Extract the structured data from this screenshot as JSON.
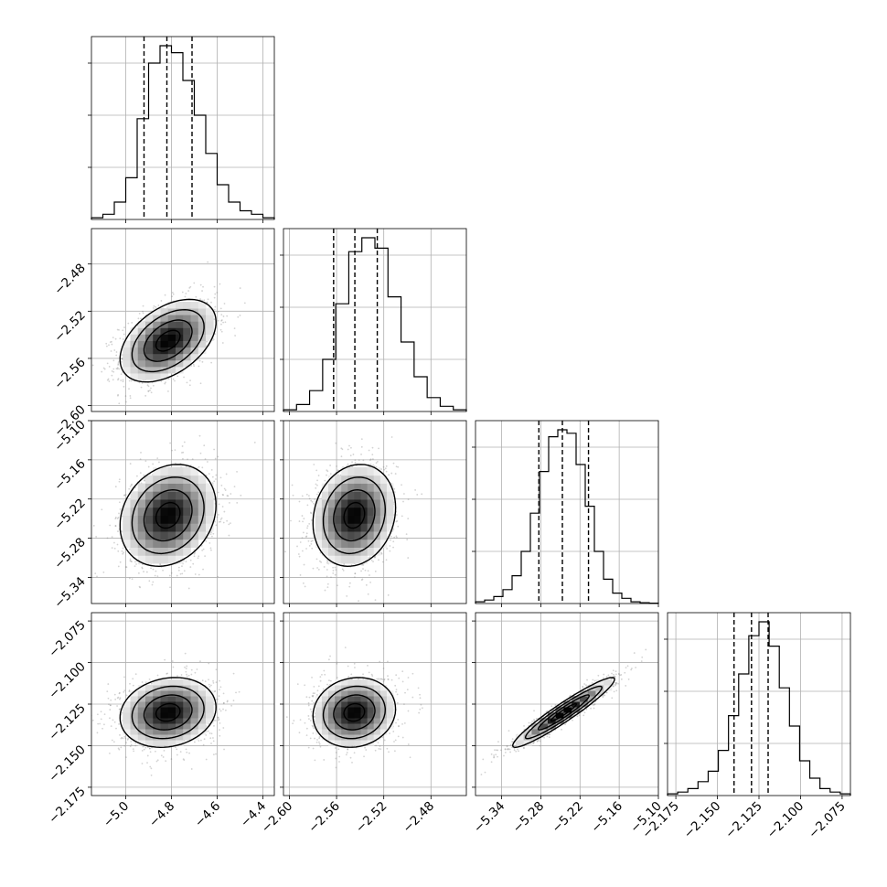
{
  "chart_data": {
    "type": "corner",
    "grid": true,
    "hist_color": "#000000",
    "scatter_color": "#808080",
    "contour_color": "#000000",
    "parameters": [
      {
        "range": [
          -5.15,
          -4.35
        ],
        "mean": -4.815,
        "std": 0.105,
        "quantiles": [
          -4.92,
          -4.82,
          -4.71
        ],
        "ticks": [
          -5.0,
          -4.8,
          -4.6,
          -4.4
        ],
        "tick_labels": [
          "−5.0",
          "−4.8",
          "−4.6",
          "−4.4"
        ]
      },
      {
        "range": [
          -2.605,
          -2.45
        ],
        "mean": -2.545,
        "std": 0.0175,
        "quantiles": [
          -2.5625,
          -2.5445,
          -2.5255
        ],
        "ticks": [
          -2.6,
          -2.56,
          -2.52,
          -2.48
        ],
        "tick_labels": [
          "−2.60",
          "−2.56",
          "−2.52",
          "−2.48"
        ]
      },
      {
        "range": [
          -5.38,
          -5.1
        ],
        "mean": -5.245,
        "std": 0.039,
        "quantiles": [
          -5.283,
          -5.247,
          -5.207
        ],
        "ticks": [
          -5.34,
          -5.28,
          -5.22,
          -5.16,
          -5.1
        ],
        "tick_labels": [
          "−5.34",
          "−5.28",
          "−5.22",
          "−5.16",
          "−5.10"
        ]
      },
      {
        "range": [
          -2.18,
          -2.07
        ],
        "mean": -2.13,
        "std": 0.0105,
        "quantiles": [
          -2.14,
          -2.1295,
          -2.1195
        ],
        "ticks": [
          -2.175,
          -2.15,
          -2.125,
          -2.1,
          -2.075
        ],
        "tick_labels": [
          "−2.175",
          "−2.150",
          "−2.125",
          "−2.100",
          "−2.075"
        ]
      }
    ],
    "correlations": {
      "0-1": 0.45,
      "0-2": 0.2,
      "1-2": 0.15,
      "0-3": 0.15,
      "1-3": 0.1,
      "2-3": 0.95
    },
    "histograms": [
      [
        1,
        3,
        10,
        24,
        58,
        90,
        100,
        96,
        80,
        60,
        38,
        20,
        10,
        5,
        3,
        1
      ],
      [
        1,
        4,
        12,
        30,
        62,
        92,
        100,
        94,
        66,
        40,
        20,
        8,
        3,
        1
      ],
      [
        1,
        2,
        4,
        8,
        16,
        30,
        52,
        76,
        96,
        100,
        98,
        80,
        56,
        30,
        14,
        6,
        3,
        1,
        0.5,
        0.2
      ],
      [
        1,
        2,
        4,
        8,
        14,
        26,
        46,
        70,
        92,
        100,
        86,
        62,
        40,
        20,
        10,
        4,
        2,
        1
      ]
    ]
  }
}
